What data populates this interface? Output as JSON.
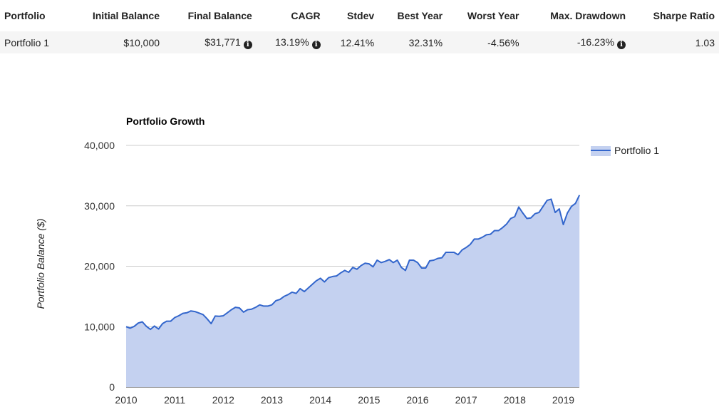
{
  "summary": {
    "columns": [
      "Portfolio",
      "Initial Balance",
      "Final Balance",
      "CAGR",
      "Stdev",
      "Best Year",
      "Worst Year",
      "Max. Drawdown",
      "Sharpe Ratio"
    ],
    "row": {
      "portfolio": "Portfolio 1",
      "initial_balance": "$10,000",
      "final_balance": "$31,771",
      "cagr": "13.19%",
      "stdev": "12.41%",
      "best_year": "32.31%",
      "worst_year": "-4.56%",
      "max_drawdown": "-16.23%",
      "sharpe_ratio": "1.03"
    },
    "info_icon": "info-icon"
  },
  "chart_data": {
    "type": "area",
    "title": "Portfolio Growth",
    "ylabel": "Portfolio Balance ($)",
    "xlabel": "",
    "ylim": [
      0,
      40000
    ],
    "xlim": [
      2010.0,
      2019.33
    ],
    "y_ticks": [
      "0",
      "10,000",
      "20,000",
      "30,000",
      "40,000"
    ],
    "x_ticks": [
      "2010",
      "2011",
      "2012",
      "2013",
      "2014",
      "2015",
      "2016",
      "2017",
      "2018",
      "2019"
    ],
    "grid": true,
    "legend_position": "right",
    "colors": {
      "line": "#3366cc",
      "fill": "#c4d1f0",
      "grid": "#cccccc",
      "axis": "#333333"
    },
    "series": [
      {
        "name": "Portfolio 1",
        "x": [
          2010.0,
          2010.083,
          2010.167,
          2010.25,
          2010.333,
          2010.417,
          2010.5,
          2010.583,
          2010.667,
          2010.75,
          2010.833,
          2010.917,
          2011.0,
          2011.083,
          2011.167,
          2011.25,
          2011.333,
          2011.417,
          2011.5,
          2011.583,
          2011.667,
          2011.75,
          2011.833,
          2011.917,
          2012.0,
          2012.083,
          2012.167,
          2012.25,
          2012.333,
          2012.417,
          2012.5,
          2012.583,
          2012.667,
          2012.75,
          2012.833,
          2012.917,
          2013.0,
          2013.083,
          2013.167,
          2013.25,
          2013.333,
          2013.417,
          2013.5,
          2013.583,
          2013.667,
          2013.75,
          2013.833,
          2013.917,
          2014.0,
          2014.083,
          2014.167,
          2014.25,
          2014.333,
          2014.417,
          2014.5,
          2014.583,
          2014.667,
          2014.75,
          2014.833,
          2014.917,
          2015.0,
          2015.083,
          2015.167,
          2015.25,
          2015.333,
          2015.417,
          2015.5,
          2015.583,
          2015.667,
          2015.75,
          2015.833,
          2015.917,
          2016.0,
          2016.083,
          2016.167,
          2016.25,
          2016.333,
          2016.417,
          2016.5,
          2016.583,
          2016.667,
          2016.75,
          2016.833,
          2016.917,
          2017.0,
          2017.083,
          2017.167,
          2017.25,
          2017.333,
          2017.417,
          2017.5,
          2017.583,
          2017.667,
          2017.75,
          2017.833,
          2017.917,
          2018.0,
          2018.083,
          2018.167,
          2018.25,
          2018.333,
          2018.417,
          2018.5,
          2018.583,
          2018.667,
          2018.75,
          2018.833,
          2018.917,
          2019.0,
          2019.083,
          2019.167,
          2019.25,
          2019.333
        ],
        "values": [
          10000,
          9750,
          10050,
          10600,
          10800,
          10050,
          9550,
          10100,
          9600,
          10500,
          10900,
          10900,
          11500,
          11800,
          12200,
          12300,
          12600,
          12500,
          12250,
          12000,
          11300,
          10500,
          11750,
          11700,
          11800,
          12300,
          12800,
          13200,
          13100,
          12400,
          12800,
          12900,
          13200,
          13600,
          13400,
          13400,
          13600,
          14300,
          14500,
          15000,
          15300,
          15700,
          15500,
          16300,
          15800,
          16400,
          17000,
          17600,
          18000,
          17400,
          18100,
          18300,
          18400,
          18900,
          19300,
          19000,
          19800,
          19500,
          20100,
          20500,
          20400,
          19900,
          21000,
          20600,
          20800,
          21100,
          20600,
          21000,
          19800,
          19300,
          21000,
          21000,
          20600,
          19700,
          19700,
          20900,
          21000,
          21300,
          21400,
          22300,
          22300,
          22300,
          21900,
          22700,
          23100,
          23600,
          24500,
          24500,
          24800,
          25200,
          25300,
          25900,
          25900,
          26400,
          27000,
          27900,
          28200,
          29800,
          28800,
          27900,
          28000,
          28700,
          28900,
          29900,
          30900,
          31100,
          28900,
          29500,
          26900,
          28800,
          29900,
          30400,
          31771
        ]
      }
    ]
  }
}
